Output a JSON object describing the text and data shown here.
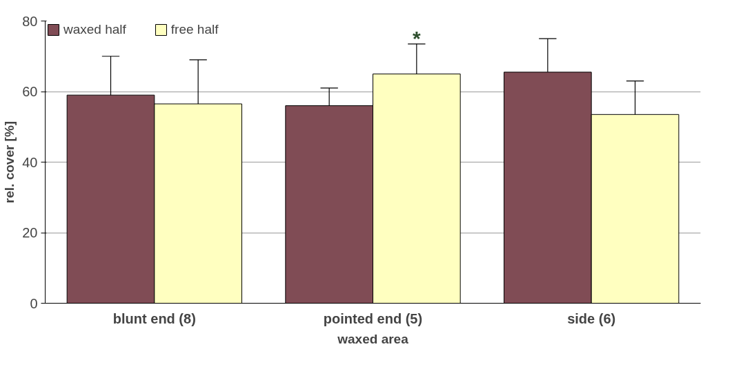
{
  "chart_data": {
    "type": "bar",
    "xlabel": "waxed area",
    "ylabel": "rel. cover [%]",
    "categories": [
      "blunt end (8)",
      "pointed end (5)",
      "side (6)"
    ],
    "series": [
      {
        "name": "waxed half",
        "color": "#804c55",
        "values": [
          59,
          56,
          65.5
        ],
        "errors": [
          [
            59,
            70
          ],
          [
            56,
            61
          ],
          [
            65.5,
            75
          ]
        ]
      },
      {
        "name": "free half",
        "color": "#ffffc0",
        "values": [
          56.5,
          65,
          53.5
        ],
        "errors": [
          [
            56.5,
            69
          ],
          [
            65,
            73.5
          ],
          [
            53.5,
            63
          ]
        ]
      }
    ],
    "ylim": [
      0,
      80
    ],
    "yticks": [
      0,
      20,
      40,
      60,
      80
    ],
    "grid": "y",
    "legend": "top left",
    "annotations": [
      "*"
    ]
  }
}
